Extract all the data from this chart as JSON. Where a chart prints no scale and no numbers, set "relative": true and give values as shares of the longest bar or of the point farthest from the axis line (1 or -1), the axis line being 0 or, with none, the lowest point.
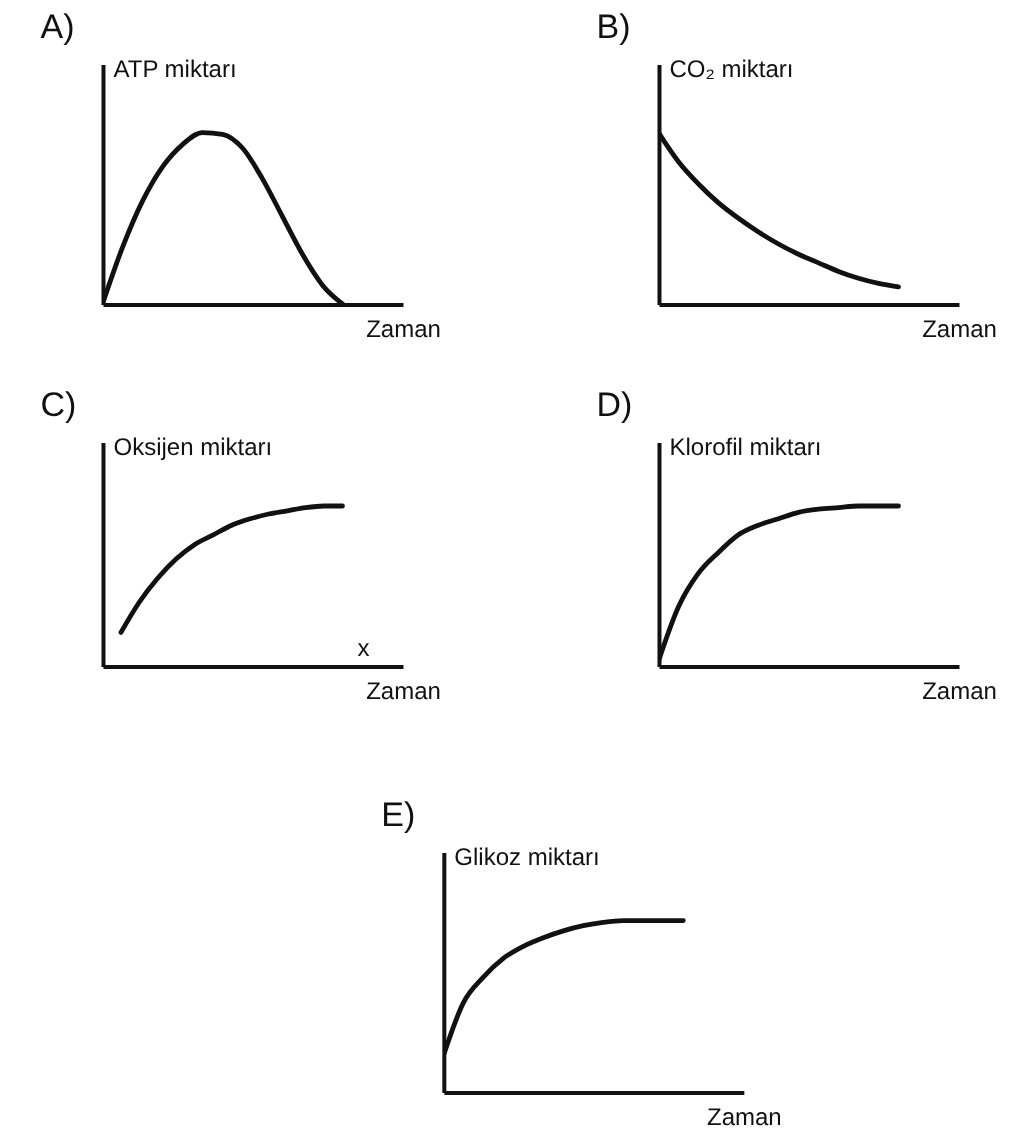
{
  "chart_data": [
    {
      "type": "line",
      "title": "A)",
      "ylabel": "ATP miktarı",
      "xlabel": "Zaman",
      "relative": true,
      "categories": [
        null,
        null,
        null,
        null,
        null,
        null,
        null,
        null,
        null,
        null,
        null,
        null,
        null
      ],
      "series": [
        {
          "color": "#111111",
          "values": [
            0,
            0.33,
            0.6,
            0.8,
            0.93,
            1,
            0.99,
            0.91,
            0.73,
            0.51,
            0.29,
            0.11,
            0
          ]
        }
      ]
    },
    {
      "type": "line",
      "title": "B)",
      "ylabel": "CO₂ miktarı",
      "xlabel": "Zaman",
      "relative": true,
      "categories": [
        null,
        null,
        null,
        null,
        null,
        null,
        null,
        null,
        null,
        null,
        null,
        null,
        null
      ],
      "series": [
        {
          "color": "#111111",
          "values": [
            1,
            0.83,
            0.7,
            0.59,
            0.5,
            0.42,
            0.35,
            0.29,
            0.24,
            0.19,
            0.15,
            0.12,
            0.1
          ]
        }
      ]
    },
    {
      "type": "line",
      "title": "C)",
      "ylabel": "Oksijen miktarı",
      "xlabel": "Zaman",
      "relative": true,
      "annotations": [
        "x"
      ],
      "categories": [
        null,
        null,
        null,
        null,
        null,
        null,
        null,
        null,
        null,
        null,
        null,
        null,
        null,
        null
      ],
      "series": [
        {
          "color": "#111111",
          "values": [
            null,
            0.21,
            0.4,
            0.55,
            0.67,
            0.76,
            0.82,
            0.88,
            0.92,
            0.95,
            0.97,
            0.99,
            1,
            1
          ]
        }
      ]
    },
    {
      "type": "line",
      "title": "D)",
      "ylabel": "Klorofil miktarı",
      "xlabel": "Zaman",
      "relative": true,
      "categories": [
        null,
        null,
        null,
        null,
        null,
        null,
        null,
        null,
        null,
        null,
        null,
        null,
        null
      ],
      "series": [
        {
          "color": "#111111",
          "values": [
            0.03,
            0.37,
            0.58,
            0.71,
            0.82,
            0.88,
            0.92,
            0.96,
            0.98,
            0.99,
            1,
            1,
            1
          ]
        }
      ]
    },
    {
      "type": "line",
      "title": "E)",
      "ylabel": "Glikoz miktarı",
      "xlabel": "Zaman",
      "relative": true,
      "categories": [
        null,
        null,
        null,
        null,
        null,
        null,
        null,
        null,
        null,
        null,
        null,
        null,
        null
      ],
      "series": [
        {
          "color": "#111111",
          "values": [
            0.21,
            0.52,
            0.67,
            0.78,
            0.85,
            0.9,
            0.94,
            0.97,
            0.99,
            1,
            1,
            1,
            1
          ]
        }
      ]
    }
  ]
}
